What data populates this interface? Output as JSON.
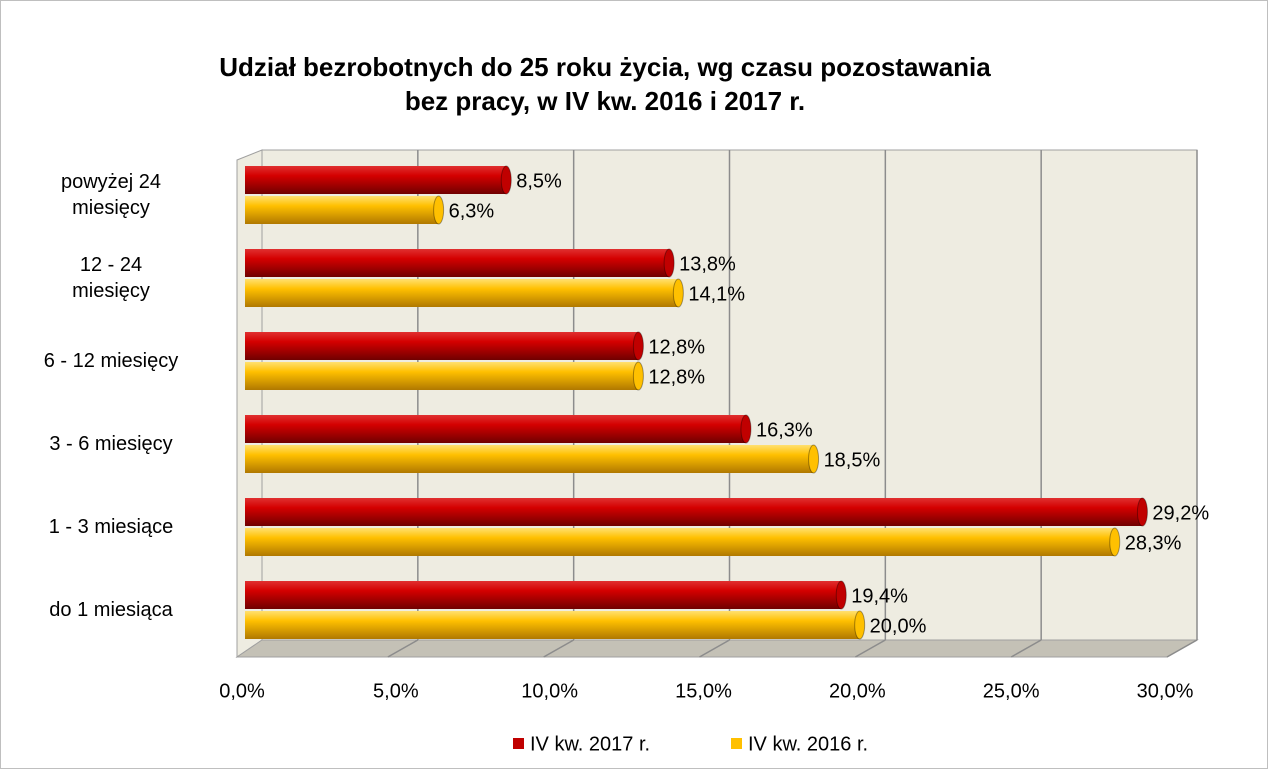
{
  "chart_data": {
    "type": "bar",
    "orientation": "horizontal",
    "title": "Udział bezrobotnych do 25 roku życia, wg czasu pozostawania\nbez pracy,  w IV kw. 2016 i 2017 r.",
    "categories": [
      "powyżej 24\nmiesięcy",
      "12 - 24\nmiesięcy",
      "6 - 12 miesięcy",
      "3 - 6 miesięcy",
      "1 - 3 miesiące",
      "do 1 miesiąca"
    ],
    "series": [
      {
        "name": "IV kw. 2017 r.",
        "color": "#c00000",
        "values": [
          8.5,
          13.8,
          12.8,
          16.3,
          29.2,
          19.4
        ],
        "value_labels": [
          "8,5%",
          "13,8%",
          "12,8%",
          "16,3%",
          "29,2%",
          "19,4%"
        ]
      },
      {
        "name": "IV kw. 2016 r.",
        "color": "#ffc000",
        "values": [
          6.3,
          14.1,
          12.8,
          18.5,
          28.3,
          20.0
        ],
        "value_labels": [
          "6,3%",
          "14,1%",
          "12,8%",
          "18,5%",
          "28,3%",
          "20,0%"
        ]
      }
    ],
    "xlim": [
      0,
      30
    ],
    "xticks": [
      {
        "value": 0,
        "label": "0,0%"
      },
      {
        "value": 5,
        "label": "5,0%"
      },
      {
        "value": 10,
        "label": "10,0%"
      },
      {
        "value": 15,
        "label": "15,0%"
      },
      {
        "value": 20,
        "label": "20,0%"
      },
      {
        "value": 25,
        "label": "25,0%"
      },
      {
        "value": 30,
        "label": "30,0%"
      }
    ],
    "grid": true,
    "legend": "bottom"
  }
}
